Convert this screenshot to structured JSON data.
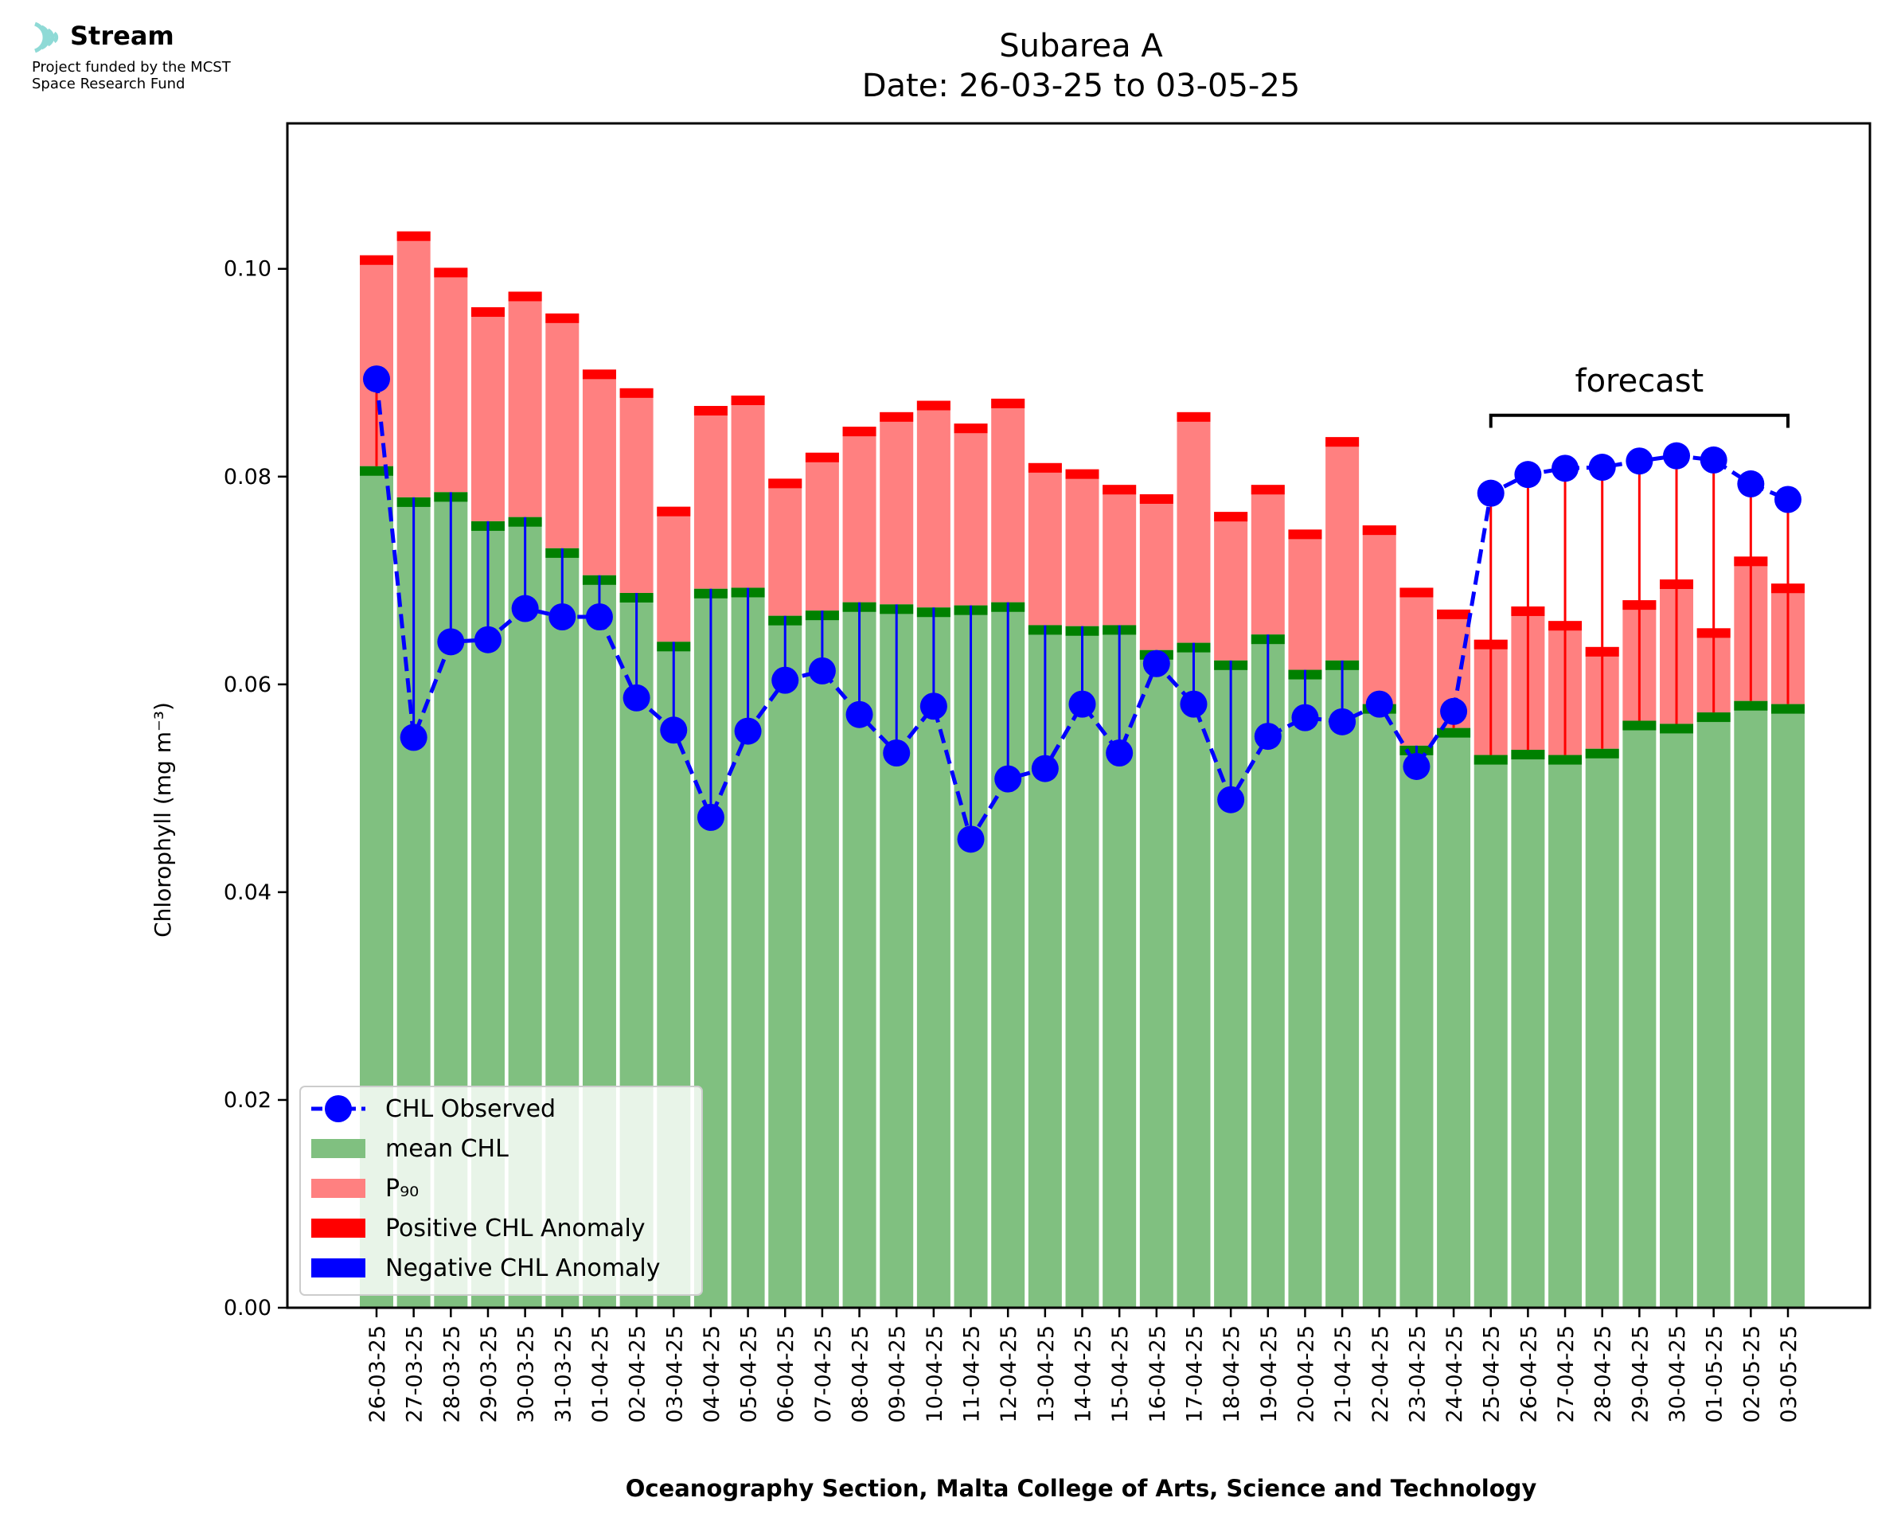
{
  "logo": {
    "name": "Stream",
    "funding_line1": "Project funded by the MCST",
    "funding_line2": "Space Research Fund"
  },
  "chart_data": {
    "type": "bar",
    "title": "Subarea A",
    "subtitle": "Date: 26-03-25 to 03-05-25",
    "xlabel": "Oceanography Section, Malta College of Arts, Science and Technology",
    "ylabel": "Chlorophyll (mg m⁻³)",
    "ylim": [
      0,
      0.114
    ],
    "yticks": [
      "0.00",
      "0.02",
      "0.04",
      "0.06",
      "0.08",
      "0.10"
    ],
    "grid": false,
    "legend_position": "lower-left",
    "forecast_label": "forecast",
    "forecast_from": "25-04-25",
    "forecast_to": "03-05-25",
    "colors": {
      "observed": "#0000ff",
      "mean": "#80c080",
      "mean_cap": "#008000",
      "p90": "#ff8080",
      "p90_cap": "#ff0000",
      "positive_anomaly": "#ff0000",
      "negative_anomaly": "#0000ff"
    },
    "categories": [
      "26-03-25",
      "27-03-25",
      "28-03-25",
      "29-03-25",
      "30-03-25",
      "31-03-25",
      "01-04-25",
      "02-04-25",
      "03-04-25",
      "04-04-25",
      "05-04-25",
      "06-04-25",
      "07-04-25",
      "08-04-25",
      "09-04-25",
      "10-04-25",
      "11-04-25",
      "12-04-25",
      "13-04-25",
      "14-04-25",
      "15-04-25",
      "16-04-25",
      "17-04-25",
      "18-04-25",
      "19-04-25",
      "20-04-25",
      "21-04-25",
      "22-04-25",
      "23-04-25",
      "24-04-25",
      "25-04-25",
      "26-04-25",
      "27-04-25",
      "28-04-25",
      "29-04-25",
      "30-04-25",
      "01-05-25",
      "02-05-25",
      "03-05-25"
    ],
    "series": [
      {
        "name": "CHL Observed",
        "type": "line",
        "values": [
          0.0894,
          0.0549,
          0.0641,
          0.0643,
          0.0673,
          0.0665,
          0.0665,
          0.0587,
          0.0556,
          0.0472,
          0.0555,
          0.0604,
          0.0613,
          0.0571,
          0.0534,
          0.0579,
          0.0451,
          0.0509,
          0.0519,
          0.0581,
          0.0534,
          0.062,
          0.0581,
          0.0489,
          0.055,
          0.0568,
          0.0564,
          0.0581,
          0.0521,
          0.0574,
          0.0784,
          0.0802,
          0.0808,
          0.0809,
          0.0815,
          0.082,
          0.0816,
          0.0793,
          0.0778
        ]
      },
      {
        "name": "mean CHL",
        "type": "bar",
        "values": [
          0.081,
          0.078,
          0.0785,
          0.0757,
          0.0761,
          0.0731,
          0.0705,
          0.0688,
          0.0641,
          0.0692,
          0.0693,
          0.0666,
          0.0671,
          0.0679,
          0.0677,
          0.0674,
          0.0676,
          0.0679,
          0.0657,
          0.0656,
          0.0657,
          0.0633,
          0.064,
          0.0623,
          0.0648,
          0.0614,
          0.0623,
          0.0581,
          0.0541,
          0.0558,
          0.0532,
          0.0537,
          0.0532,
          0.0538,
          0.0565,
          0.0562,
          0.0573,
          0.0584,
          0.0581
        ]
      },
      {
        "name": "P₉₀",
        "type": "bar",
        "values": [
          0.1013,
          0.1036,
          0.1001,
          0.0963,
          0.0978,
          0.0957,
          0.0903,
          0.0885,
          0.0771,
          0.0868,
          0.0878,
          0.0798,
          0.0823,
          0.0848,
          0.0862,
          0.0873,
          0.0851,
          0.0875,
          0.0813,
          0.0807,
          0.0792,
          0.0783,
          0.0862,
          0.0766,
          0.0792,
          0.0749,
          0.0838,
          0.0753,
          0.0693,
          0.0672,
          0.0643,
          0.0675,
          0.0661,
          0.0636,
          0.0681,
          0.0701,
          0.0654,
          0.0723,
          0.0697
        ]
      }
    ],
    "legend": [
      "CHL Observed",
      "mean CHL",
      "P₉₀",
      "Positive CHL Anomaly",
      "Negative CHL Anomaly"
    ]
  }
}
